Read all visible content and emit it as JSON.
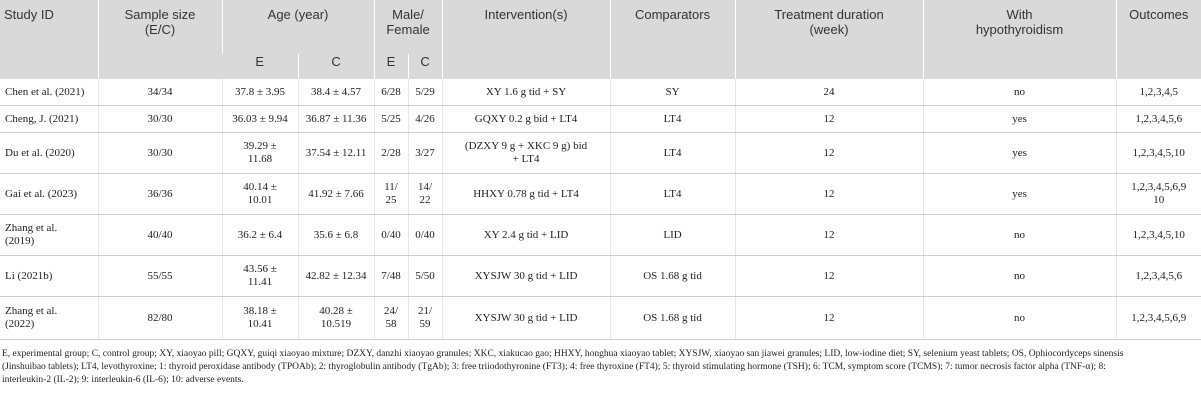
{
  "header": {
    "study_id": "Study ID",
    "sample_size": "Sample size\n(E/C)",
    "age": "Age (year)",
    "sex": "Male/\nFemale",
    "interventions": "Intervention(s)",
    "comparators": "Comparators",
    "duration": "Treatment duration\n(week)",
    "hypothyroidism": "With\nhypothyroidism",
    "outcomes": "Outcomes",
    "age_e": "E",
    "age_c": "C",
    "sex_e": "E",
    "sex_c": "C"
  },
  "rows": [
    {
      "study": "Chen et al. (2021)",
      "sample": "34/34",
      "age_e": "37.8 ± 3.95",
      "age_c": "38.4 ± 4.57",
      "sex_e": "6/28",
      "sex_c": "5/29",
      "intervention": "XY 1.6 g tid + SY",
      "comparator": "SY",
      "duration": "24",
      "hypo": "no",
      "outcomes": "1,2,3,4,5"
    },
    {
      "study": "Cheng, J. (2021)",
      "sample": "30/30",
      "age_e": "36.03 ± 9.94",
      "age_c": "36.87 ± 11.36",
      "sex_e": "5/25",
      "sex_c": "4/26",
      "intervention": "GQXY 0.2 g bid + LT4",
      "comparator": "LT4",
      "duration": "12",
      "hypo": "yes",
      "outcomes": "1,2,3,4,5,6"
    },
    {
      "study": "Du et al. (2020)",
      "sample": "30/30",
      "age_e": "39.29 ±\n11.68",
      "age_c": "37.54 ± 12.11",
      "sex_e": "2/28",
      "sex_c": "3/27",
      "intervention": "(DZXY 9 g + XKC 9 g) bid\n+ LT4",
      "comparator": "LT4",
      "duration": "12",
      "hypo": "yes",
      "outcomes": "1,2,3,4,5,10"
    },
    {
      "study": "Gai et al. (2023)",
      "sample": "36/36",
      "age_e": "40.14 ±\n10.01",
      "age_c": "41.92 ± 7.66",
      "sex_e": "11/\n25",
      "sex_c": "14/\n22",
      "intervention": "HHXY 0.78 g tid + LT4",
      "comparator": "LT4",
      "duration": "12",
      "hypo": "yes",
      "outcomes": "1,2,3,4,5,6,9\n10"
    },
    {
      "study": "Zhang et al.\n(2019)",
      "sample": "40/40",
      "age_e": "36.2 ± 6.4",
      "age_c": "35.6 ± 6.8",
      "sex_e": "0/40",
      "sex_c": "0/40",
      "intervention": "XY 2.4 g tid + LID",
      "comparator": "LID",
      "duration": "12",
      "hypo": "no",
      "outcomes": "1,2,3,4,5,10"
    },
    {
      "study": "Li (2021b)",
      "sample": "55/55",
      "age_e": "43.56 ±\n11.41",
      "age_c": "42.82 ± 12.34",
      "sex_e": "7/48",
      "sex_c": "5/50",
      "intervention": "XYSJW 30 g tid + LID",
      "comparator": "OS 1.68 g tid",
      "duration": "12",
      "hypo": "no",
      "outcomes": "1,2,3,4,5,6"
    },
    {
      "study": "Zhang et al.\n(2022)",
      "sample": "82/80",
      "age_e": "38.18 ±\n10.41",
      "age_c": "40.28 ±\n10.519",
      "sex_e": "24/\n58",
      "sex_c": "21/\n59",
      "intervention": "XYSJW 30 g tid + LID",
      "comparator": "OS 1.68 g tid",
      "duration": "12",
      "hypo": "no",
      "outcomes": "1,2,3,4,5,6,9"
    }
  ],
  "footnote": "E, experimental group; C, control group; XY, xiaoyao pill; GQXY, guiqi xiaoyao mixture; DZXY, danzhi xiaoyao granules; XKC, xiakucao gao; HHXY, honghua xiaoyao tablet; XYSJW, xiaoyao san jiawei granules; LID, low-iodine diet; SY, selenium yeast tablets; OS, Ophiocordyceps sinensis (Jinshuibao tablets); LT4, levothyroxine; 1: thyroid peroxidase antibody (TPOAb); 2: thyroglobulin antibody (TgAb); 3: free triiodothyronine (FT3); 4: free thyroxine (FT4); 5: thyroid stimulating hormone (TSH); 6: TCM, symptom score (TCMS); 7: tumor necrosis factor alpha (TNF-α); 8: interleukin-2 (IL-2); 9: interleukin-6 (IL-6); 10: adverse events."
}
